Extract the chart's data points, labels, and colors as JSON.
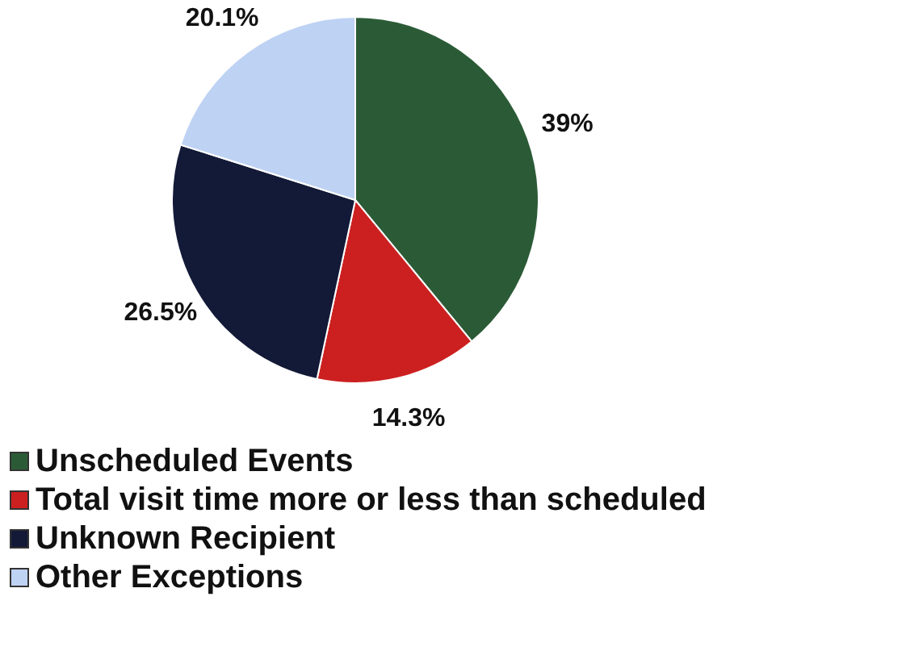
{
  "chart_data": {
    "type": "pie",
    "categories": [
      "Unscheduled Events",
      "Total visit time more or less than scheduled",
      "Unknown Recipient",
      "Other Exceptions"
    ],
    "values": [
      39,
      14.3,
      26.5,
      20.1
    ],
    "colors": [
      "#2b5b36",
      "#cc2020",
      "#131a38",
      "#bed2f4"
    ],
    "value_labels": [
      "39%",
      "14.3%",
      "26.5%",
      "20.1%"
    ],
    "legend": "bottom"
  }
}
